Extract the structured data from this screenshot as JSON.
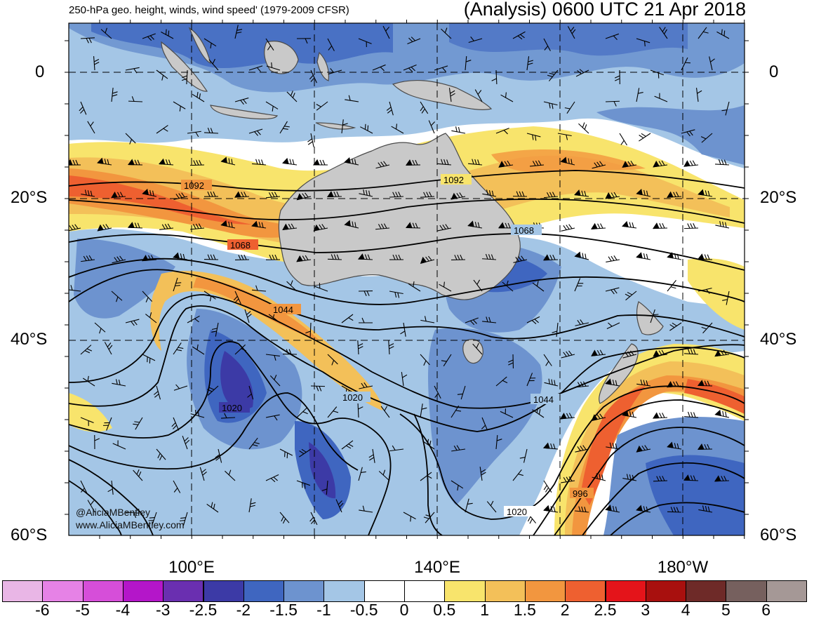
{
  "header": {
    "left_title": "250-hPa geo. height, winds, wind speed' (1979-2009 CFSR)",
    "right_title": "(Analysis) 0600 UTC 21 Apr 2018"
  },
  "map": {
    "lat_labels": [
      "0",
      "20°S",
      "40°S",
      "60°S"
    ],
    "lon_labels": [
      "100°E",
      "140°E",
      "180°W"
    ],
    "contour_labels": [
      "1092",
      "1092",
      "1068",
      "1068",
      "1044",
      "1044",
      "1020",
      "1020",
      "1020",
      "996"
    ],
    "credit": [
      "@AliciaMBentley",
      "www.AliciaMBentley.com"
    ]
  },
  "colorbar": {
    "labels": [
      "-6",
      "-5",
      "-4",
      "-3",
      "-2.5",
      "-2",
      "-1.5",
      "-1",
      "-0.5",
      "0",
      "0.5",
      "1",
      "1.5",
      "2",
      "2.5",
      "3",
      "4",
      "5",
      "6"
    ],
    "colors": [
      "#e9b6e6",
      "#e682e6",
      "#d64ed9",
      "#b416c9",
      "#6a2fb0",
      "#3c3aa6",
      "#3f66c0",
      "#6d93cf",
      "#a4c6e6",
      "#ffffff",
      "#ffffff",
      "#f8e46c",
      "#f3c059",
      "#f2963f",
      "#ee6030",
      "#e4141a",
      "#a8100e",
      "#6e2a28",
      "#76605e",
      "#a59896"
    ]
  },
  "style": {
    "land": "#c9c9c9",
    "coast": "#4a4a4a",
    "contour": "#000000"
  }
}
